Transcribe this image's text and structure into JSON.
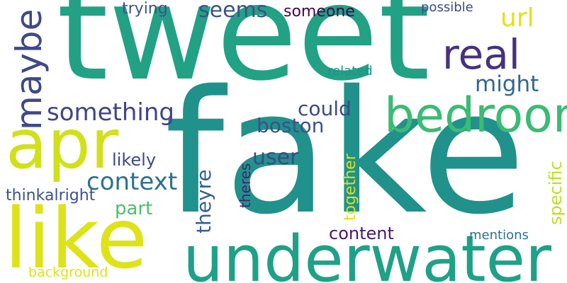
{
  "words": [
    {
      "text": "fake",
      "color": "#21918c",
      "vertical": false
    },
    {
      "text": "tweet",
      "color": "#22a184",
      "vertical": false
    },
    {
      "text": "underwater",
      "color": "#1fa187",
      "vertical": false
    },
    {
      "text": "like",
      "color": "#dde318",
      "vertical": false
    },
    {
      "text": "apr",
      "color": "#d0e11c",
      "vertical": false
    },
    {
      "text": "bedroom",
      "color": "#3bbb75",
      "vertical": false
    },
    {
      "text": "maybe",
      "color": "#3e4989",
      "vertical": true
    },
    {
      "text": "real",
      "color": "#46327e",
      "vertical": false
    },
    {
      "text": "something",
      "color": "#414487",
      "vertical": false
    },
    {
      "text": "context",
      "color": "#2c728e",
      "vertical": false
    },
    {
      "text": "seems",
      "color": "#3b528b",
      "vertical": false
    },
    {
      "text": "might",
      "color": "#31688e",
      "vertical": false
    },
    {
      "text": "could",
      "color": "#3e4989",
      "vertical": false
    },
    {
      "text": "boston",
      "color": "#3b528b",
      "vertical": false
    },
    {
      "text": "url",
      "color": "#dde318",
      "vertical": false
    },
    {
      "text": "user",
      "color": "#3e4989",
      "vertical": false
    },
    {
      "text": "someone",
      "color": "#440154",
      "vertical": false
    },
    {
      "text": "trying",
      "color": "#3b528b",
      "vertical": false
    },
    {
      "text": "likely",
      "color": "#3e4989",
      "vertical": false
    },
    {
      "text": "part",
      "color": "#4ac16d",
      "vertical": false
    },
    {
      "text": "theyre",
      "color": "#355f8d",
      "vertical": true
    },
    {
      "text": "together",
      "color": "#d8e219",
      "vertical": true
    },
    {
      "text": "specific",
      "color": "#bddf26",
      "vertical": true
    },
    {
      "text": "theres",
      "color": "#481f70",
      "vertical": true
    },
    {
      "text": "content",
      "color": "#48186a",
      "vertical": false
    },
    {
      "text": "thinkalright",
      "color": "#3b528b",
      "vertical": false
    },
    {
      "text": "mentions",
      "color": "#2c728e",
      "vertical": false
    },
    {
      "text": "related",
      "color": "#21918c",
      "vertical": false
    },
    {
      "text": "possible",
      "color": "#3e4989",
      "vertical": false
    },
    {
      "text": "background",
      "color": "#dde318",
      "vertical": false
    }
  ]
}
